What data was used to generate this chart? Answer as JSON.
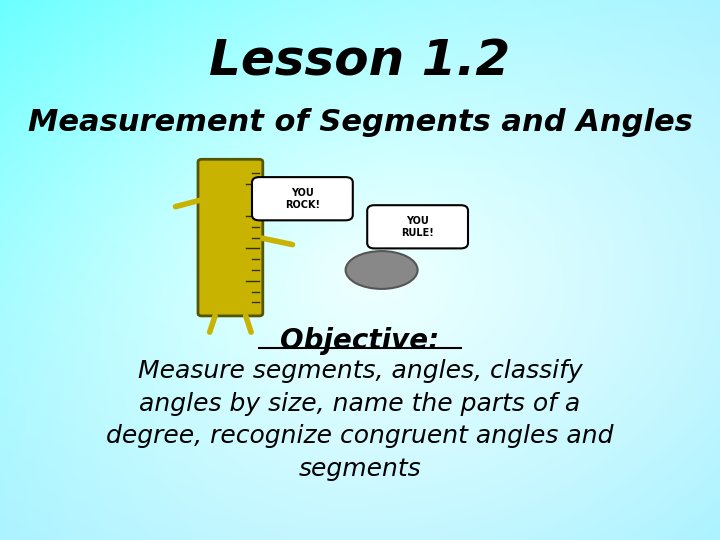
{
  "title": "Lesson 1.2",
  "subtitle": "Measurement of Segments and Angles",
  "objective_label": "Objective:",
  "objective_text": "Measure segments, angles, classify\nangles by size, name the parts of a\ndegree, recognize congruent angles and\nsegments",
  "title_fontsize": 36,
  "subtitle_fontsize": 22,
  "objective_label_fontsize": 20,
  "objective_text_fontsize": 18,
  "title_color": "#000000",
  "subtitle_color": "#000000",
  "objective_label_color": "#000000",
  "objective_text_color": "#000000"
}
